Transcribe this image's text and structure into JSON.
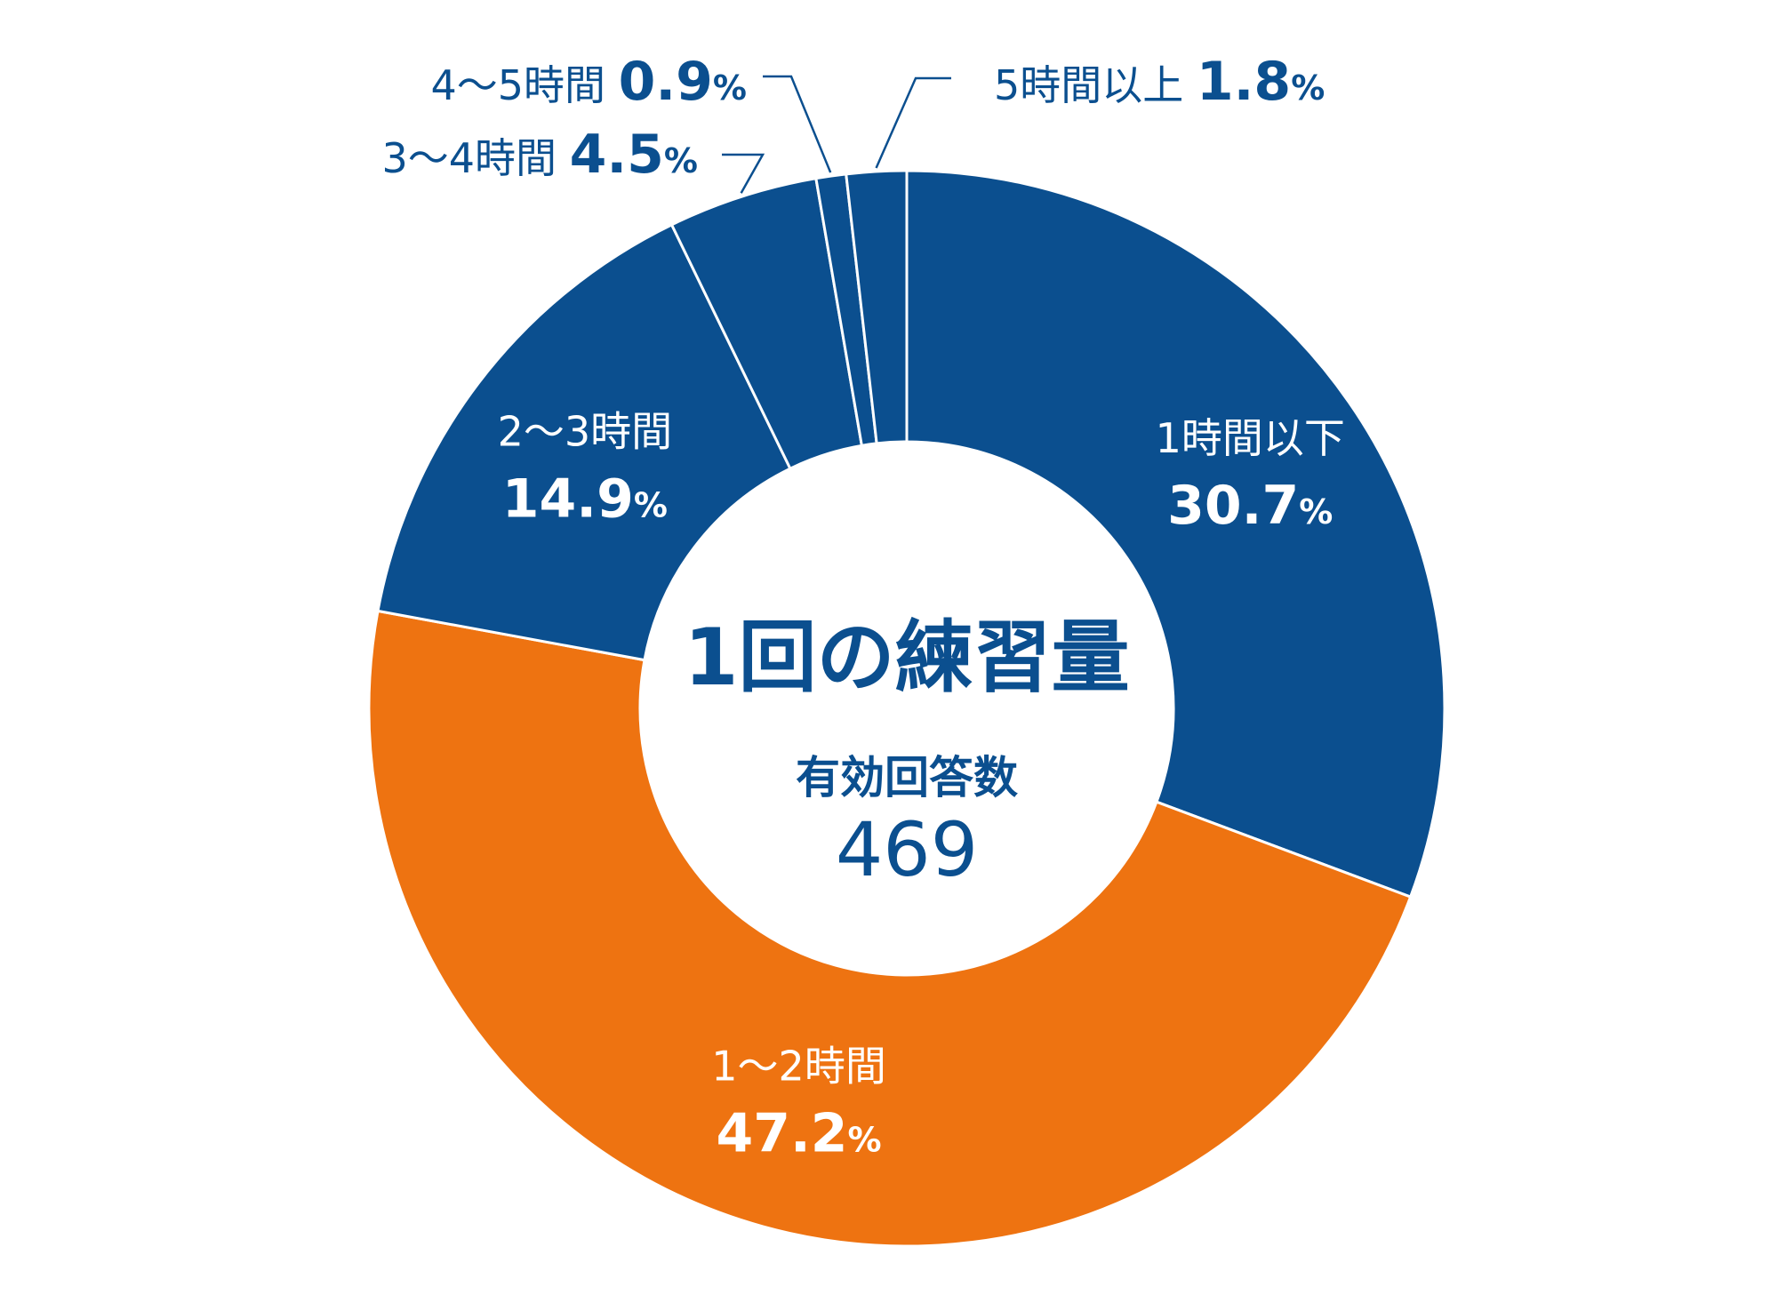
{
  "chart_data": {
    "type": "pie",
    "title": "1回の練習量",
    "subtitle": "有効回答数",
    "total": "469",
    "unit": "%",
    "categories": [
      "1時間以下",
      "1～2時間",
      "2～3時間",
      "3～4時間",
      "4～5時間",
      "5時間以上"
    ],
    "values": [
      30.7,
      47.2,
      14.9,
      4.5,
      0.9,
      1.8
    ],
    "value_labels": [
      "30.7",
      "47.2",
      "14.9",
      "4.5",
      "0.9",
      "1.8"
    ],
    "colors": [
      "#0b4f8f",
      "#ee7311",
      "#0b4f8f",
      "#0b4f8f",
      "#0b4f8f",
      "#0b4f8f"
    ],
    "donut": true,
    "start": "12 o'clock",
    "direction": "clockwise"
  }
}
